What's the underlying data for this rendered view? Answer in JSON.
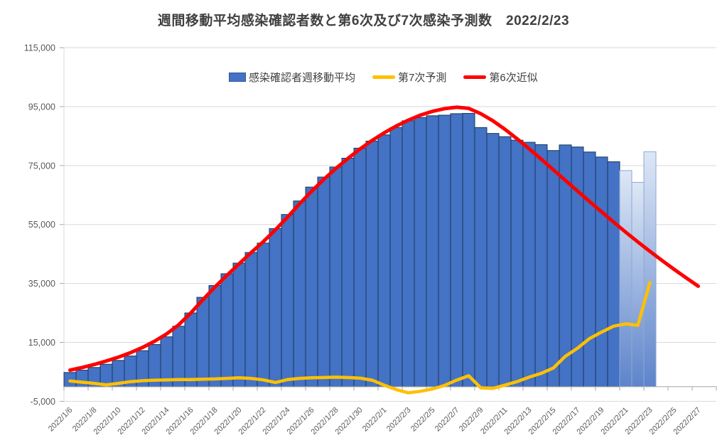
{
  "title": "週間移動平均感染確認者数と第6次及び7次感染予測数　2022/2/23",
  "legend": {
    "items": [
      {
        "label": "感染確認者週移動平均",
        "color": "#4472C4",
        "marker": "rect"
      },
      {
        "label": "第7次予測",
        "color": "#FFC000",
        "marker": "line"
      },
      {
        "label": "第6次近似",
        "color": "#FF0000",
        "marker": "line"
      }
    ]
  },
  "y_axis": {
    "tick_values": [
      -5000,
      15000,
      35000,
      55000,
      75000,
      95000,
      115000
    ],
    "tick_labels": [
      "-5,000",
      "15,000",
      "35,000",
      "55,000",
      "75,000",
      "95,000",
      "115,000"
    ]
  },
  "chart_data": {
    "type": "combo",
    "title": "週間移動平均感染確認者数と第6次及び7次感染予測数　2022/2/23",
    "xlabel": "",
    "ylabel": "",
    "ylim": [
      -5000,
      115000
    ],
    "grid": "horizontal",
    "legend_position": "top",
    "x_label_every": 2,
    "x": [
      "2022/1/6",
      "2022/1/7",
      "2022/1/8",
      "2022/1/9",
      "2022/1/10",
      "2022/1/11",
      "2022/1/12",
      "2022/1/13",
      "2022/1/14",
      "2022/1/15",
      "2022/1/16",
      "2022/1/17",
      "2022/1/18",
      "2022/1/19",
      "2022/1/20",
      "2022/1/21",
      "2022/1/22",
      "2022/1/23",
      "2022/1/24",
      "2022/1/25",
      "2022/1/26",
      "2022/1/27",
      "2022/1/28",
      "2022/1/29",
      "2022/1/30",
      "2022/1/31",
      "2022/2/1",
      "2022/2/2",
      "2022/2/3",
      "2022/2/4",
      "2022/2/5",
      "2022/2/6",
      "2022/2/7",
      "2022/2/8",
      "2022/2/9",
      "2022/2/10",
      "2022/2/11",
      "2022/2/12",
      "2022/2/13",
      "2022/2/14",
      "2022/2/15",
      "2022/2/16",
      "2022/2/17",
      "2022/2/18",
      "2022/2/19",
      "2022/2/20",
      "2022/2/21",
      "2022/2/22",
      "2022/2/23",
      "2022/2/24",
      "2022/2/25",
      "2022/2/26",
      "2022/2/27"
    ],
    "series": [
      {
        "name": "感染確認者週移動平均",
        "type": "bar",
        "color": "#4472C4",
        "border_color": "#17375E",
        "forecast_from_index": 46,
        "forecast_fill_top": "#dde7f6",
        "forecast_fill_bottom": "#5e84cb",
        "forecast_border_color": "#8ea9ce",
        "values": [
          4800,
          5600,
          6500,
          7600,
          8900,
          10400,
          12200,
          14300,
          16900,
          20500,
          25000,
          30300,
          34300,
          38300,
          41900,
          45500,
          48700,
          53600,
          58400,
          63000,
          67700,
          71100,
          74500,
          77500,
          80900,
          83300,
          85400,
          87900,
          90200,
          91300,
          91900,
          92100,
          92600,
          92700,
          87900,
          85900,
          84800,
          83600,
          82900,
          82100,
          80100,
          82000,
          81300,
          79600,
          77900,
          76300,
          73300,
          69300,
          79700
        ]
      },
      {
        "name": "第7次予測",
        "type": "line",
        "color": "#FFC000",
        "width": 4.5,
        "values": [
          1900,
          1500,
          1100,
          600,
          1100,
          1700,
          2000,
          2200,
          2300,
          2400,
          2400,
          2500,
          2600,
          2800,
          3000,
          2800,
          2300,
          1400,
          2400,
          2800,
          3000,
          3100,
          3200,
          3100,
          2900,
          2200,
          500,
          -1000,
          -2100,
          -1600,
          -800,
          400,
          2200,
          3700,
          -400,
          -600,
          500,
          1700,
          3200,
          4500,
          6300,
          10300,
          13000,
          16300,
          18500,
          20500,
          21300,
          20800,
          35300
        ]
      },
      {
        "name": "第6次近似",
        "type": "line",
        "color": "#FF0000",
        "width": 5,
        "values": [
          5600,
          6500,
          7500,
          8700,
          10000,
          11500,
          13300,
          15400,
          17900,
          21000,
          25000,
          29500,
          33800,
          37800,
          41700,
          45500,
          49200,
          53200,
          57500,
          62000,
          66300,
          70300,
          74000,
          77400,
          80600,
          83500,
          86100,
          88400,
          90400,
          92100,
          93400,
          94300,
          94800,
          94400,
          92600,
          90200,
          87300,
          84100,
          80700,
          77200,
          73600,
          70000,
          66400,
          62800,
          59300,
          55800,
          52400,
          49100,
          45900,
          42800,
          39800,
          36900,
          34100
        ]
      }
    ]
  }
}
